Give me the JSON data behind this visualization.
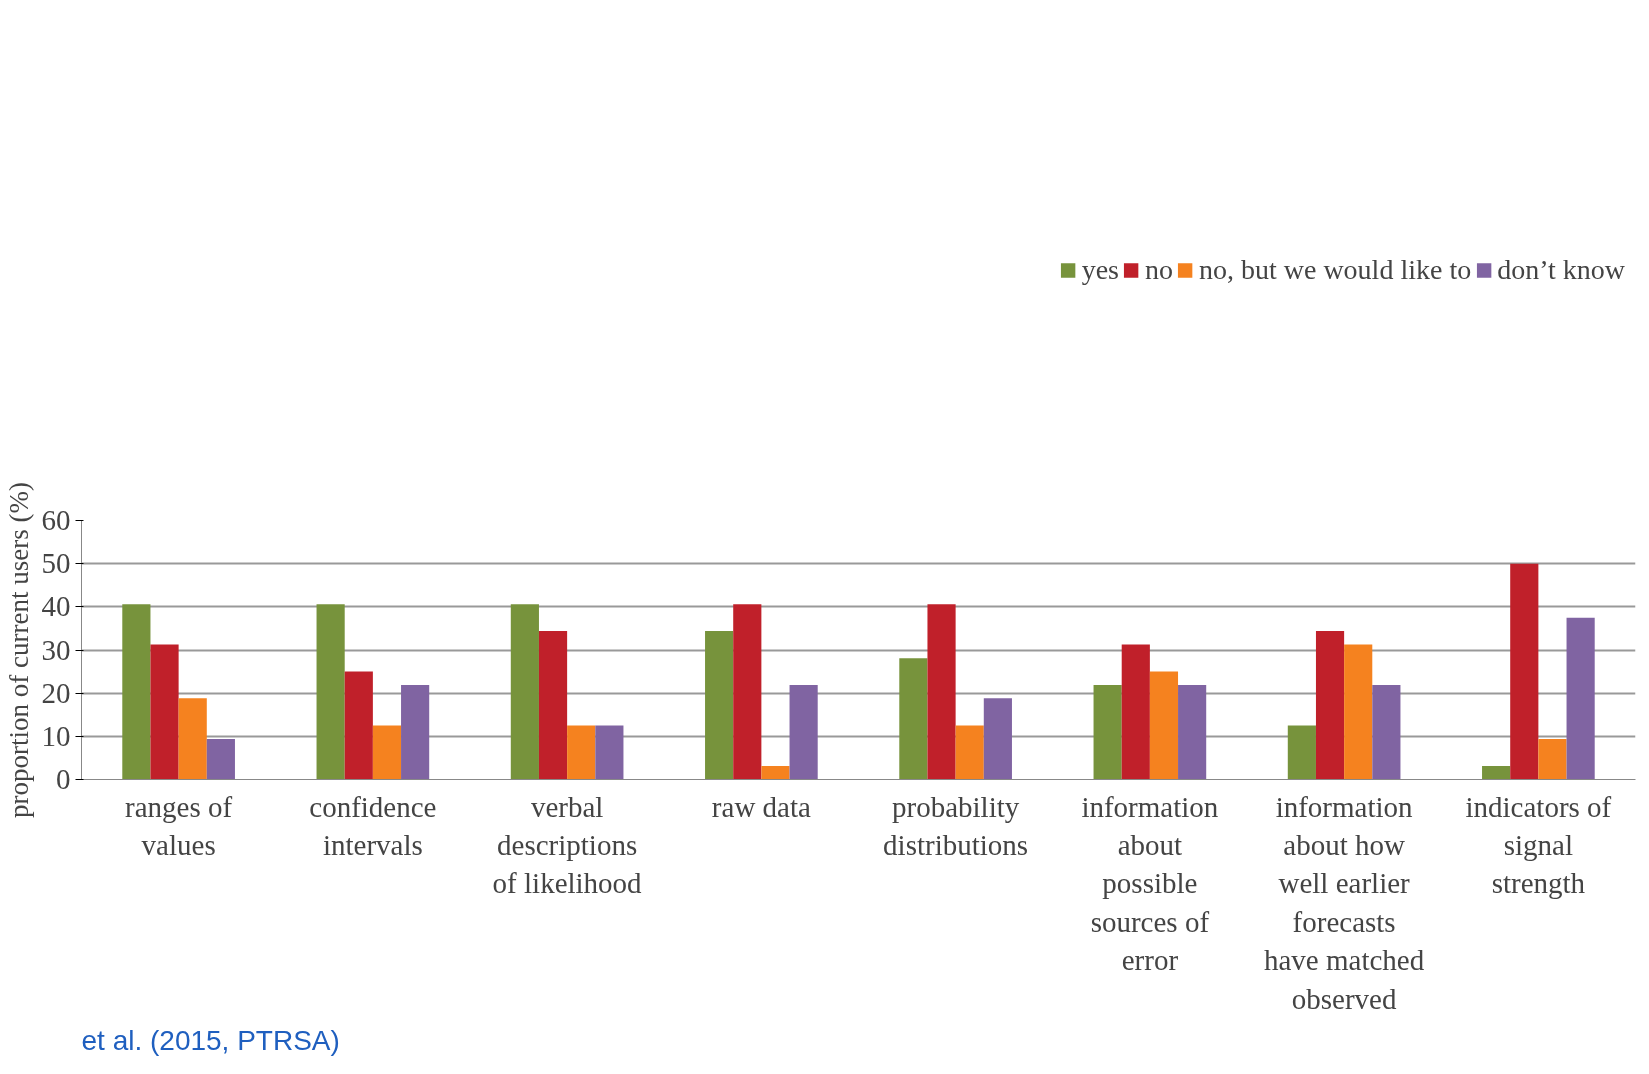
{
  "chart_data": {
    "type": "bar",
    "ylabel": "proportion of current users (%)",
    "categories": [
      "ranges of values",
      "confidence intervals",
      "verbal descriptions of likelihood",
      "raw data",
      "probability distributions",
      "information about possible sources of error",
      "information about how well earlier forecasts have matched observed",
      "indicators of signal strength"
    ],
    "series": [
      {
        "name": "yes",
        "color": "#77933c",
        "values": [
          40.6,
          40.6,
          40.6,
          34.4,
          28.1,
          21.9,
          12.5,
          3.1
        ]
      },
      {
        "name": "no",
        "color": "#c0202a",
        "values": [
          31.3,
          25,
          34.4,
          40.6,
          40.6,
          31.3,
          34.4,
          50
        ]
      },
      {
        "name": "no, but we would like to",
        "color": "#f5821f",
        "values": [
          18.8,
          12.5,
          12.5,
          3.1,
          12.5,
          25,
          31.3,
          9.4
        ]
      },
      {
        "name": "don’t know",
        "color": "#8064a2",
        "values": [
          9.4,
          21.9,
          12.5,
          21.9,
          18.8,
          21.9,
          21.9,
          37.5
        ]
      }
    ],
    "ylim": [
      0,
      60
    ],
    "yticks": [
      0,
      10,
      20,
      30,
      40,
      50,
      60
    ],
    "grid": "y",
    "legend": "top",
    "annotations": [
      "et al. (2015, PTRSA)"
    ]
  }
}
